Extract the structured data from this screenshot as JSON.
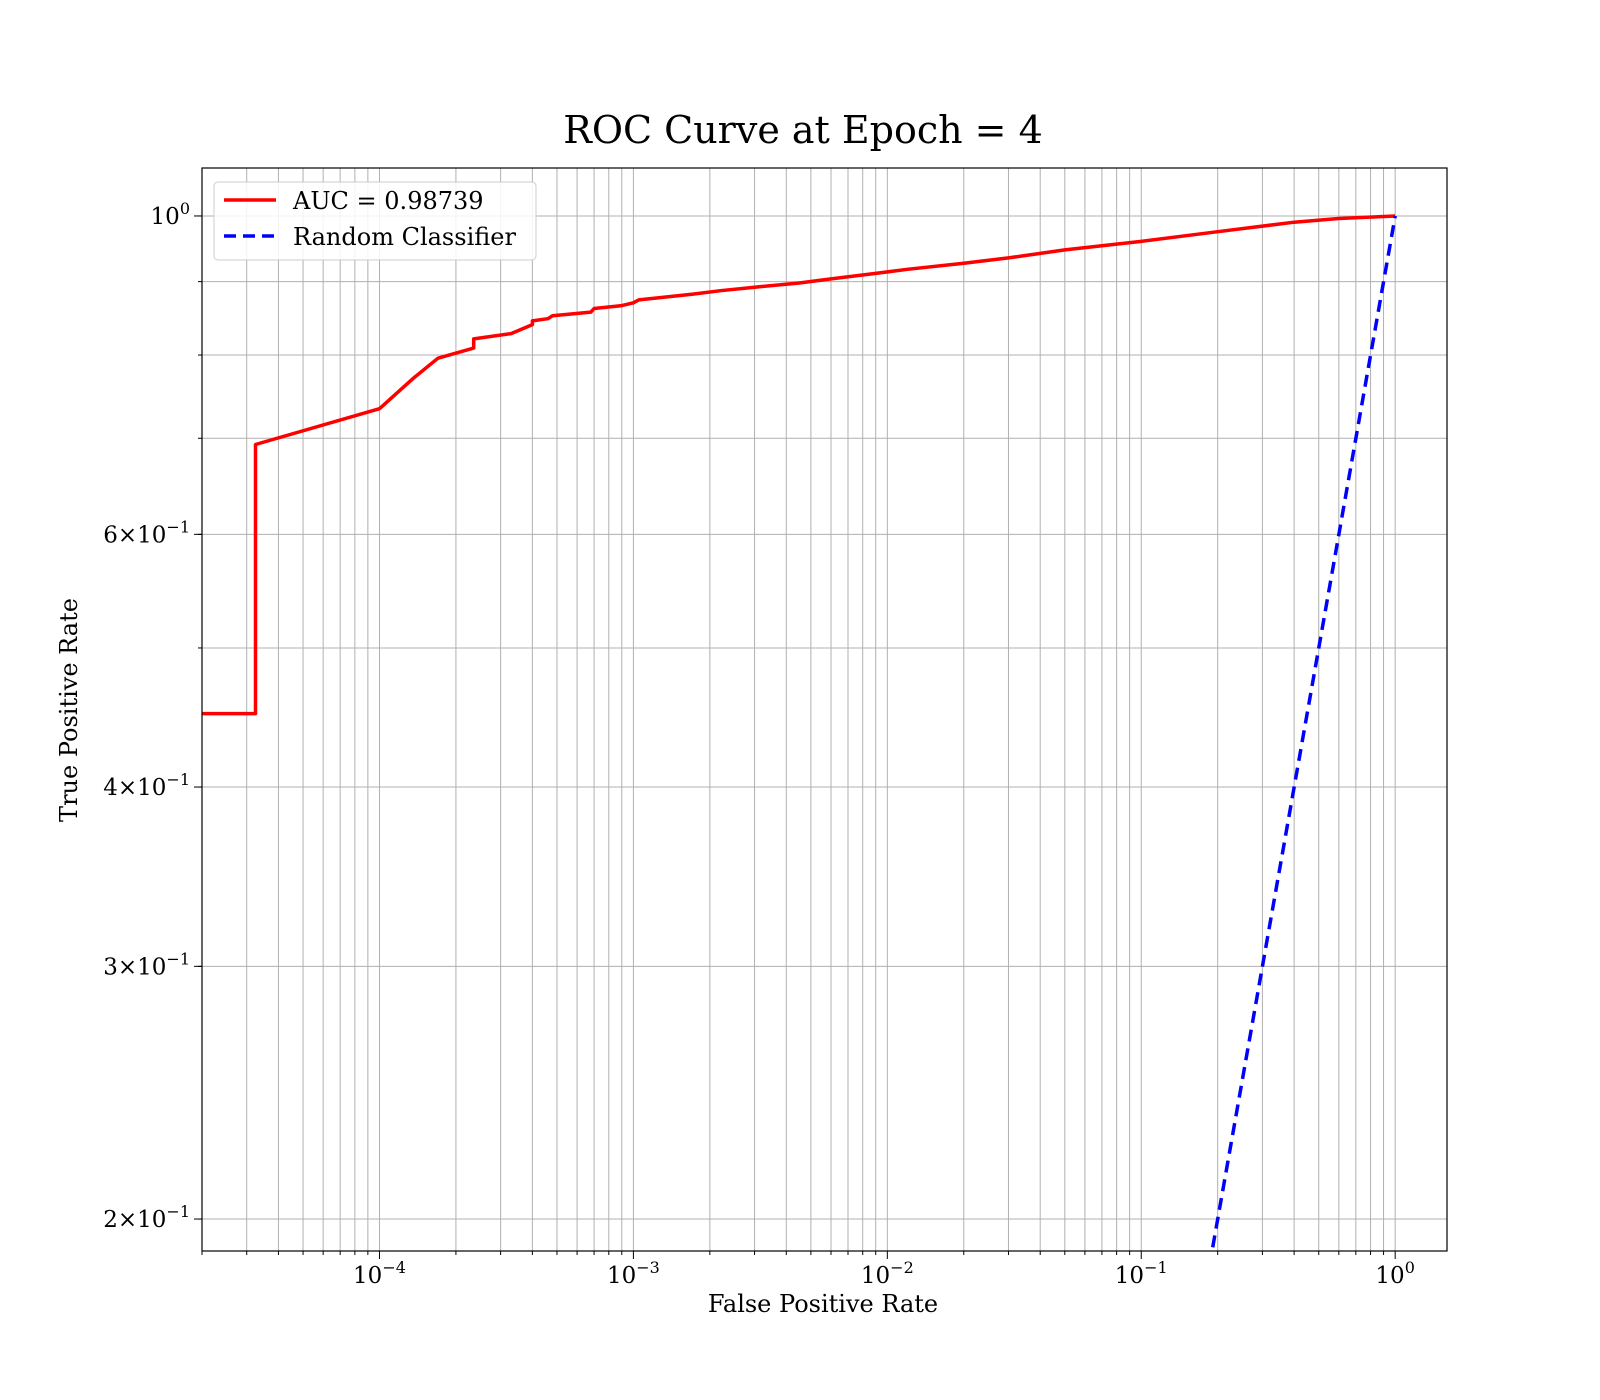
{
  "chart_data": {
    "type": "line",
    "title": "ROC Curve at Epoch = 4",
    "xlabel": "False Positive Rate",
    "ylabel": "True Positive Rate",
    "xscale": "log",
    "yscale": "log",
    "xlim": [
      2e-05,
      1.6
    ],
    "ylim": [
      0.19,
      1.08
    ],
    "grid": "both-major-and-minor",
    "legend_position": "top-left",
    "x_ticks": [
      {
        "value": 0.0001,
        "base": "10",
        "exp": "−4"
      },
      {
        "value": 0.001,
        "base": "10",
        "exp": "−3"
      },
      {
        "value": 0.01,
        "base": "10",
        "exp": "−2"
      },
      {
        "value": 0.1,
        "base": "10",
        "exp": "−1"
      },
      {
        "value": 1,
        "base": "10",
        "exp": "0"
      }
    ],
    "y_ticks": [
      {
        "value": 1.0,
        "mant": "",
        "base": "10",
        "exp": "0"
      },
      {
        "value": 0.6,
        "mant": "6",
        "base": "10",
        "exp": "−1"
      },
      {
        "value": 0.4,
        "mant": "4",
        "base": "10",
        "exp": "−1"
      },
      {
        "value": 0.3,
        "mant": "3",
        "base": "10",
        "exp": "−1"
      },
      {
        "value": 0.2,
        "mant": "2",
        "base": "10",
        "exp": "−1"
      }
    ],
    "series": [
      {
        "name": "AUC = 0.98739",
        "color": "#ff0000",
        "style": "solid",
        "x": [
          2e-05,
          3.25e-05,
          3.25e-05,
          0.0001,
          0.000135,
          0.00017,
          0.000235,
          0.000235,
          0.00033,
          0.0004,
          0.0004,
          0.00046,
          0.00048,
          0.00068,
          0.0007,
          0.0009,
          0.001,
          0.00105,
          0.0017,
          0.0022,
          0.003,
          0.0045,
          0.006,
          0.009,
          0.012,
          0.02,
          0.03,
          0.05,
          0.1,
          0.2,
          0.4,
          0.6,
          1.0
        ],
        "y": [
          0.45,
          0.45,
          0.693,
          0.734,
          0.77,
          0.796,
          0.809,
          0.821,
          0.828,
          0.84,
          0.845,
          0.848,
          0.852,
          0.857,
          0.862,
          0.866,
          0.87,
          0.874,
          0.882,
          0.887,
          0.892,
          0.898,
          0.904,
          0.912,
          0.918,
          0.927,
          0.935,
          0.947,
          0.96,
          0.975,
          0.99,
          0.996,
          1.0
        ]
      },
      {
        "name": "Random Classifier",
        "color": "#0000ff",
        "style": "dashed",
        "x": [
          0.18,
          1.0
        ],
        "y": [
          0.18,
          1.0
        ]
      }
    ]
  }
}
